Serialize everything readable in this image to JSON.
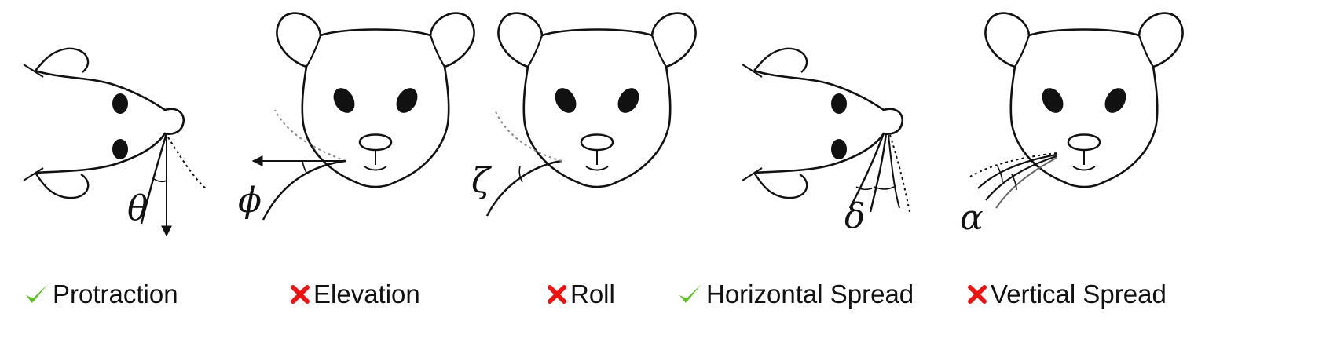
{
  "panels": [
    {
      "symbol": "θ",
      "label": "Protraction",
      "status": "check"
    },
    {
      "symbol": "ϕ",
      "label": "Elevation",
      "status": "cross"
    },
    {
      "symbol": "ζ",
      "label": "Roll",
      "status": "cross"
    },
    {
      "symbol": "δ",
      "label": "Horizontal Spread",
      "status": "check"
    },
    {
      "symbol": "α",
      "label": "Vertical Spread",
      "status": "cross"
    }
  ],
  "colors": {
    "check": "#5cc11f",
    "cross": "#ee1111",
    "line": "#111111"
  },
  "icons": {
    "check": "checkmark-icon",
    "cross": "cross-icon"
  }
}
